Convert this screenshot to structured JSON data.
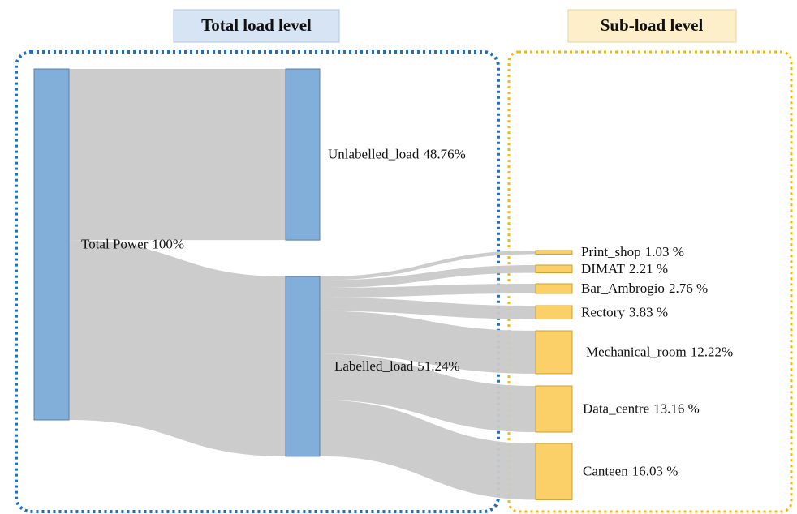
{
  "chart_data": {
    "type": "sankey",
    "headers": [
      "Total load level",
      "Sub-load level"
    ],
    "nodes": [
      {
        "name": "Total Power",
        "value": 100,
        "value_label": "100%"
      },
      {
        "name": "Unlabelled_load",
        "value": 48.76,
        "value_label": "48.76%"
      },
      {
        "name": "Labelled_load",
        "value": 51.24,
        "value_label": "51.24%"
      },
      {
        "name": "Print_shop",
        "value": 1.03,
        "value_label": "1.03 %"
      },
      {
        "name": "DIMAT",
        "value": 2.21,
        "value_label": "2.21 %"
      },
      {
        "name": "Bar_Ambrogio",
        "value": 2.76,
        "value_label": "2.76 %"
      },
      {
        "name": "Rectory",
        "value": 3.83,
        "value_label": "3.83 %"
      },
      {
        "name": "Mechanical_room",
        "value": 12.22,
        "value_label": "12.22%"
      },
      {
        "name": "Data_centre",
        "value": 13.16,
        "value_label": "13.16 %"
      },
      {
        "name": "Canteen",
        "value": 16.03,
        "value_label": "16.03 %"
      }
    ],
    "links": [
      {
        "source": 0,
        "target": 1
      },
      {
        "source": 0,
        "target": 2
      },
      {
        "source": 2,
        "target": 3
      },
      {
        "source": 2,
        "target": 4
      },
      {
        "source": 2,
        "target": 5
      },
      {
        "source": 2,
        "target": 6
      },
      {
        "source": 2,
        "target": 7
      },
      {
        "source": 2,
        "target": 8
      },
      {
        "source": 2,
        "target": 9
      }
    ],
    "node_colors": [
      "#82afd9",
      "#82afd9",
      "#82afd9",
      "#fcd068",
      "#fcd068",
      "#fcd068",
      "#fcd068",
      "#fcd068",
      "#fcd068",
      "#fcd068"
    ],
    "link_color": "#c9c9c9"
  }
}
